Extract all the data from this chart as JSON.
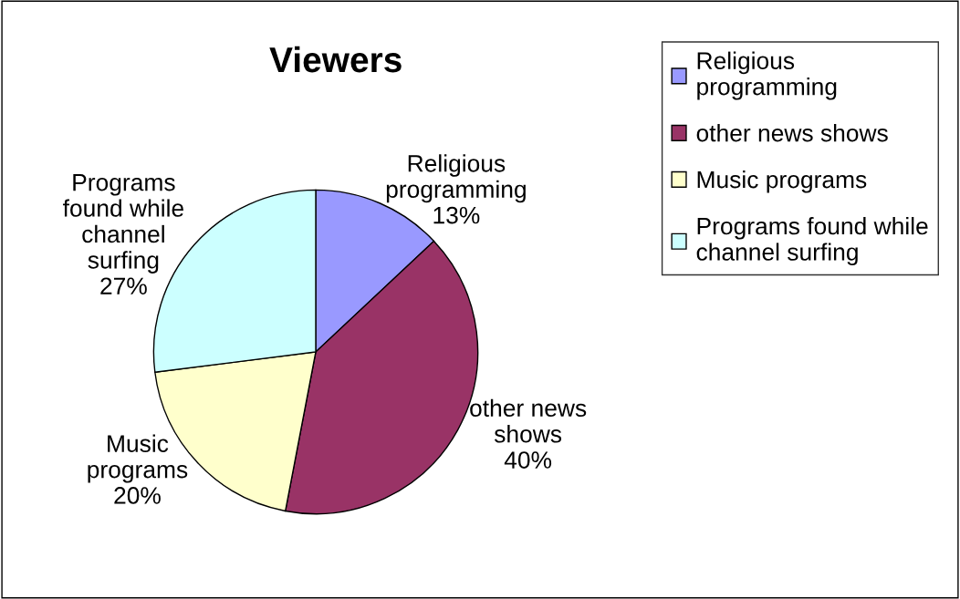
{
  "chart_data": {
    "type": "pie",
    "title": "Viewers",
    "categories": [
      "Religious programming",
      "other news shows",
      "Music programs",
      "Programs found while channel surfing"
    ],
    "values": [
      13,
      40,
      20,
      27
    ],
    "colors": [
      "#9999ff",
      "#993366",
      "#ffffcc",
      "#ccffff"
    ],
    "value_labels": [
      "13%",
      "40%",
      "20%",
      "27%"
    ],
    "legend": "right"
  }
}
